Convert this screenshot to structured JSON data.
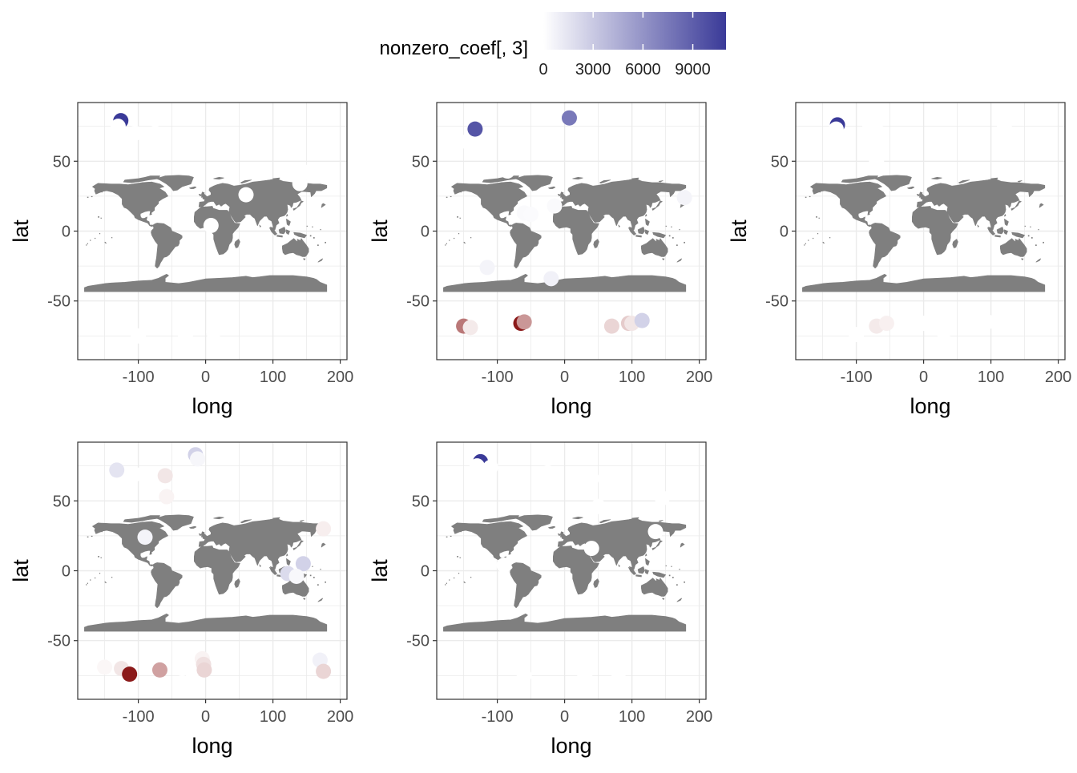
{
  "legend": {
    "title": "nonzero_coef[, 3]",
    "tick_labels": [
      "0",
      "3000",
      "6000",
      "9000"
    ],
    "tick_values": [
      0,
      3000,
      6000,
      9000
    ],
    "range": [
      0,
      11000
    ],
    "gradient_colors": [
      "#ffffff",
      "#3a3a98"
    ],
    "diverging_low_color": "#8b1a1a"
  },
  "colors": {
    "land": "#7f7f7f",
    "panel_border": "#333333",
    "grid": "#ebebeb",
    "point_neutral": "#ffffff"
  },
  "chart_data": [
    {
      "type": "scatter",
      "panel": 1,
      "xlabel": "long",
      "ylabel": "lat",
      "xlim": [
        -190,
        210
      ],
      "ylim": [
        -92,
        92
      ],
      "x_ticks": [
        -100,
        0,
        100,
        200
      ],
      "y_ticks": [
        -50,
        0,
        50
      ],
      "x_tick_labels": [
        "-100",
        "0",
        "100",
        "200"
      ],
      "y_tick_labels": [
        "-50",
        "0",
        "50"
      ],
      "points": [
        {
          "x": -126,
          "y": 79,
          "v": 11000
        },
        {
          "x": -130,
          "y": 75,
          "v": 0
        },
        {
          "x": -105,
          "y": 70,
          "v": 0
        },
        {
          "x": -75,
          "y": 80,
          "v": 0
        },
        {
          "x": -78,
          "y": 64,
          "v": 0
        },
        {
          "x": 24,
          "y": 65,
          "v": 0
        },
        {
          "x": 26,
          "y": 60,
          "v": 0
        },
        {
          "x": 162,
          "y": 62,
          "v": 0
        },
        {
          "x": 150,
          "y": 42,
          "v": 0
        },
        {
          "x": 140,
          "y": 34,
          "v": 0
        },
        {
          "x": 60,
          "y": 26,
          "v": 0
        },
        {
          "x": 8,
          "y": 4,
          "v": 0
        },
        {
          "x": 12,
          "y": -72,
          "v": 0
        },
        {
          "x": -30,
          "y": -76,
          "v": 0
        },
        {
          "x": -100,
          "y": -75,
          "v": 0
        },
        {
          "x": 120,
          "y": -68,
          "v": 0
        }
      ]
    },
    {
      "type": "scatter",
      "panel": 2,
      "xlabel": "long",
      "ylabel": "lat",
      "xlim": [
        -190,
        210
      ],
      "ylim": [
        -92,
        92
      ],
      "x_ticks": [
        -100,
        0,
        100,
        200
      ],
      "y_ticks": [
        -50,
        0,
        50
      ],
      "x_tick_labels": [
        "-100",
        "0",
        "100",
        "200"
      ],
      "y_tick_labels": [
        "-50",
        "0",
        "50"
      ],
      "points": [
        {
          "x": -133,
          "y": 73,
          "v": 9500
        },
        {
          "x": 7,
          "y": 81,
          "v": 7500
        },
        {
          "x": -155,
          "y": 64,
          "v": 0
        },
        {
          "x": -85,
          "y": 43,
          "v": 0
        },
        {
          "x": -60,
          "y": 13,
          "v": 300
        },
        {
          "x": -50,
          "y": 12,
          "v": 200
        },
        {
          "x": -15,
          "y": 18,
          "v": 300
        },
        {
          "x": 178,
          "y": 24,
          "v": 600
        },
        {
          "x": -115,
          "y": -26,
          "v": 600
        },
        {
          "x": -20,
          "y": -34,
          "v": 800
        },
        {
          "x": -150,
          "y": -68,
          "v": -6500
        },
        {
          "x": -140,
          "y": -69,
          "v": -1000
        },
        {
          "x": -65,
          "y": -66,
          "v": -11000
        },
        {
          "x": -60,
          "y": -65,
          "v": -5000
        },
        {
          "x": 70,
          "y": -68,
          "v": -2000
        },
        {
          "x": 95,
          "y": -66,
          "v": -2500
        },
        {
          "x": 100,
          "y": -66,
          "v": -1200
        },
        {
          "x": 115,
          "y": -64,
          "v": 2500
        }
      ]
    },
    {
      "type": "scatter",
      "panel": 3,
      "xlabel": "long",
      "ylabel": "lat",
      "xlim": [
        -190,
        210
      ],
      "ylim": [
        -92,
        92
      ],
      "x_ticks": [
        -100,
        0,
        100,
        200
      ],
      "y_ticks": [
        -50,
        0,
        50
      ],
      "x_tick_labels": [
        "-100",
        "0",
        "100",
        "200"
      ],
      "y_tick_labels": [
        "-50",
        "0",
        "50"
      ],
      "points": [
        {
          "x": -128,
          "y": 76,
          "v": 11000
        },
        {
          "x": -130,
          "y": 73,
          "v": 0
        },
        {
          "x": -80,
          "y": 76,
          "v": 0
        },
        {
          "x": -68,
          "y": 71,
          "v": 0
        },
        {
          "x": -70,
          "y": 50,
          "v": 0
        },
        {
          "x": -15,
          "y": 66,
          "v": 0
        },
        {
          "x": 28,
          "y": 60,
          "v": 0
        },
        {
          "x": 120,
          "y": 76,
          "v": 0
        },
        {
          "x": -70,
          "y": -68,
          "v": -1000
        },
        {
          "x": -55,
          "y": -66,
          "v": -700
        },
        {
          "x": 0,
          "y": -66,
          "v": 0
        },
        {
          "x": 30,
          "y": -72,
          "v": 0
        },
        {
          "x": 95,
          "y": -65,
          "v": 0
        },
        {
          "x": -100,
          "y": -74,
          "v": 0
        }
      ]
    },
    {
      "type": "scatter",
      "panel": 4,
      "xlabel": "long",
      "ylabel": "lat",
      "xlim": [
        -190,
        210
      ],
      "ylim": [
        -92,
        92
      ],
      "x_ticks": [
        -100,
        0,
        100,
        200
      ],
      "y_ticks": [
        -50,
        0,
        50
      ],
      "x_tick_labels": [
        "-100",
        "0",
        "100",
        "200"
      ],
      "y_tick_labels": [
        "-50",
        "0",
        "50"
      ],
      "points": [
        {
          "x": -132,
          "y": 72,
          "v": 1500
        },
        {
          "x": -105,
          "y": 69,
          "v": 0
        },
        {
          "x": -85,
          "y": 64,
          "v": 0
        },
        {
          "x": -60,
          "y": 68,
          "v": -1200
        },
        {
          "x": -58,
          "y": 53,
          "v": -600
        },
        {
          "x": -15,
          "y": 83,
          "v": 2500
        },
        {
          "x": -12,
          "y": 80,
          "v": 500
        },
        {
          "x": 25,
          "y": 60,
          "v": 0
        },
        {
          "x": 175,
          "y": 30,
          "v": -800
        },
        {
          "x": -90,
          "y": 24,
          "v": 600
        },
        {
          "x": 145,
          "y": 5,
          "v": 2500
        },
        {
          "x": 122,
          "y": -2,
          "v": 2000
        },
        {
          "x": 135,
          "y": -4,
          "v": 400
        },
        {
          "x": -150,
          "y": -69,
          "v": -400
        },
        {
          "x": -125,
          "y": -70,
          "v": -1200
        },
        {
          "x": -113,
          "y": -74,
          "v": -11000
        },
        {
          "x": -68,
          "y": -71,
          "v": -4500
        },
        {
          "x": -35,
          "y": -70,
          "v": 0
        },
        {
          "x": -20,
          "y": -72,
          "v": 0
        },
        {
          "x": -5,
          "y": -63,
          "v": -600
        },
        {
          "x": -3,
          "y": -67,
          "v": -1500
        },
        {
          "x": -2,
          "y": -71,
          "v": -2000
        },
        {
          "x": 170,
          "y": -64,
          "v": 800
        },
        {
          "x": 175,
          "y": -72,
          "v": -2000
        }
      ]
    },
    {
      "type": "scatter",
      "panel": 5,
      "xlabel": "long",
      "ylabel": "lat",
      "xlim": [
        -190,
        210
      ],
      "ylim": [
        -92,
        92
      ],
      "x_ticks": [
        -100,
        0,
        100,
        200
      ],
      "y_ticks": [
        -50,
        0,
        50
      ],
      "x_tick_labels": [
        "-100",
        "0",
        "100",
        "200"
      ],
      "y_tick_labels": [
        "-50",
        "0",
        "50"
      ],
      "points": [
        {
          "x": -125,
          "y": 78,
          "v": 11000
        },
        {
          "x": -130,
          "y": 75,
          "v": 0
        },
        {
          "x": -110,
          "y": 74,
          "v": 0
        },
        {
          "x": -70,
          "y": 62,
          "v": 0
        },
        {
          "x": -25,
          "y": 70,
          "v": 0
        },
        {
          "x": 40,
          "y": 66,
          "v": 0
        },
        {
          "x": 50,
          "y": 46,
          "v": 0
        },
        {
          "x": 145,
          "y": 52,
          "v": 0
        },
        {
          "x": 135,
          "y": 28,
          "v": 0
        },
        {
          "x": 40,
          "y": 16,
          "v": 0
        },
        {
          "x": -90,
          "y": 4,
          "v": 0
        },
        {
          "x": -60,
          "y": -75,
          "v": 0
        },
        {
          "x": 30,
          "y": -75,
          "v": 0
        },
        {
          "x": 80,
          "y": -73,
          "v": 0
        }
      ]
    }
  ]
}
